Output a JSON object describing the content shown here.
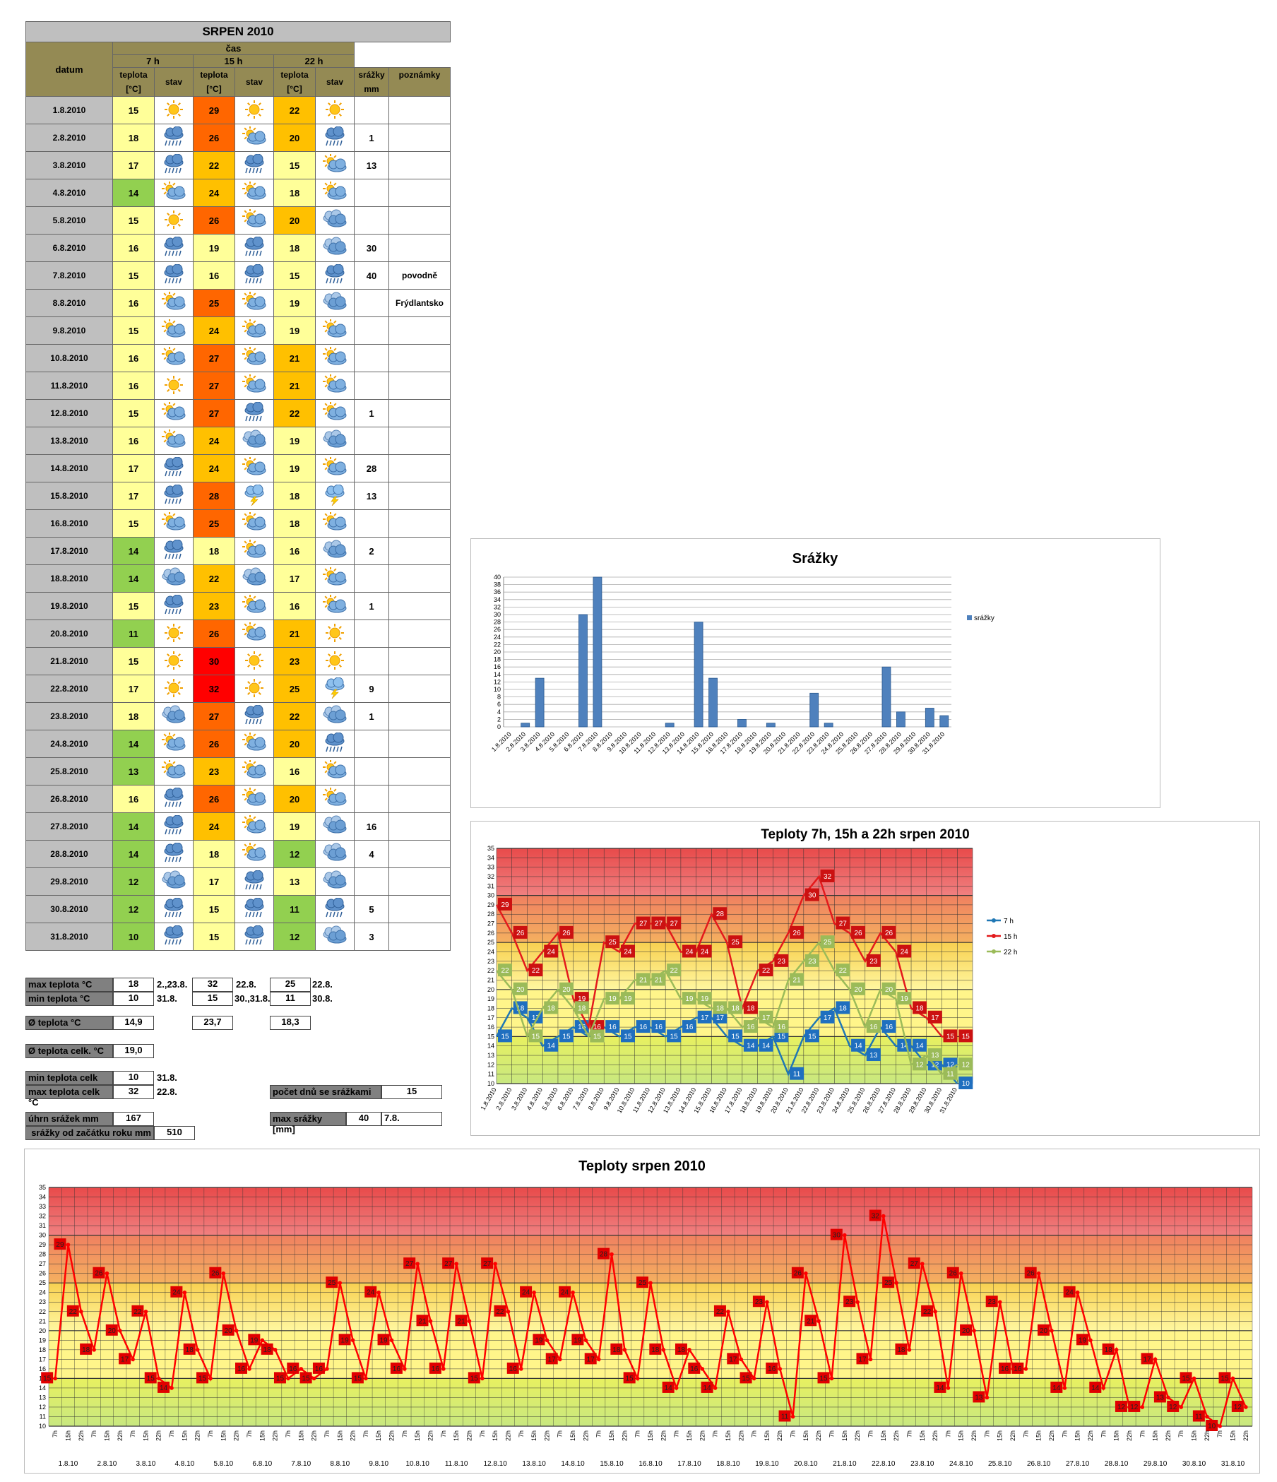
{
  "table": {
    "title": "SRPEN 2010",
    "headers": {
      "datum": "datum",
      "cas": "čas",
      "t7": "7 h",
      "t15": "15 h",
      "t22": "22 h",
      "teplota1": "teplota",
      "teplota2": "[°C]",
      "stav": "stav",
      "srazky1": "srážky",
      "srazky2": "mm",
      "poznamky": "poznámky"
    },
    "rows": [
      {
        "date": "1.8.2010",
        "t7": 15,
        "w7": "sun",
        "t15": 29,
        "w15": "sun",
        "t22": 22,
        "w22": "sun",
        "rain": "",
        "note": ""
      },
      {
        "date": "2.8.2010",
        "t7": 18,
        "w7": "rain",
        "t15": 26,
        "w15": "partly",
        "t22": 20,
        "w22": "rain",
        "rain": "1",
        "note": ""
      },
      {
        "date": "3.8.2010",
        "t7": 17,
        "w7": "rain",
        "t15": 22,
        "w15": "rain",
        "t22": 15,
        "w22": "partly",
        "rain": "13",
        "note": ""
      },
      {
        "date": "4.8.2010",
        "t7": 14,
        "w7": "partly",
        "t15": 24,
        "w15": "partly",
        "t22": 18,
        "w22": "partly",
        "rain": "",
        "note": ""
      },
      {
        "date": "5.8.2010",
        "t7": 15,
        "w7": "sun",
        "t15": 26,
        "w15": "partly",
        "t22": 20,
        "w22": "cloud",
        "rain": "",
        "note": ""
      },
      {
        "date": "6.8.2010",
        "t7": 16,
        "w7": "rain",
        "t15": 19,
        "w15": "rain",
        "t22": 18,
        "w22": "cloud",
        "rain": "30",
        "note": ""
      },
      {
        "date": "7.8.2010",
        "t7": 15,
        "w7": "rain",
        "t15": 16,
        "w15": "rain",
        "t22": 15,
        "w22": "rain",
        "rain": "40",
        "note": "povodně"
      },
      {
        "date": "8.8.2010",
        "t7": 16,
        "w7": "partly",
        "t15": 25,
        "w15": "partly",
        "t22": 19,
        "w22": "cloud",
        "rain": "",
        "note": "Frýdlantsko"
      },
      {
        "date": "9.8.2010",
        "t7": 15,
        "w7": "partly",
        "t15": 24,
        "w15": "partly",
        "t22": 19,
        "w22": "partly",
        "rain": "",
        "note": ""
      },
      {
        "date": "10.8.2010",
        "t7": 16,
        "w7": "partly",
        "t15": 27,
        "w15": "partly",
        "t22": 21,
        "w22": "partly",
        "rain": "",
        "note": ""
      },
      {
        "date": "11.8.2010",
        "t7": 16,
        "w7": "sun",
        "t15": 27,
        "w15": "partly",
        "t22": 21,
        "w22": "partly",
        "rain": "",
        "note": ""
      },
      {
        "date": "12.8.2010",
        "t7": 15,
        "w7": "partly",
        "t15": 27,
        "w15": "rain",
        "t22": 22,
        "w22": "partly",
        "rain": "1",
        "note": ""
      },
      {
        "date": "13.8.2010",
        "t7": 16,
        "w7": "partly",
        "t15": 24,
        "w15": "cloud",
        "t22": 19,
        "w22": "cloud",
        "rain": "",
        "note": ""
      },
      {
        "date": "14.8.2010",
        "t7": 17,
        "w7": "rain",
        "t15": 24,
        "w15": "partly",
        "t22": 19,
        "w22": "partly",
        "rain": "28",
        "note": ""
      },
      {
        "date": "15.8.2010",
        "t7": 17,
        "w7": "rain",
        "t15": 28,
        "w15": "storm",
        "t22": 18,
        "w22": "storm",
        "rain": "13",
        "note": ""
      },
      {
        "date": "16.8.2010",
        "t7": 15,
        "w7": "partly",
        "t15": 25,
        "w15": "partly",
        "t22": 18,
        "w22": "partly",
        "rain": "",
        "note": ""
      },
      {
        "date": "17.8.2010",
        "t7": 14,
        "w7": "rain",
        "t15": 18,
        "w15": "partly",
        "t22": 16,
        "w22": "cloud",
        "rain": "2",
        "note": ""
      },
      {
        "date": "18.8.2010",
        "t7": 14,
        "w7": "cloud",
        "t15": 22,
        "w15": "cloud",
        "t22": 17,
        "w22": "partly",
        "rain": "",
        "note": ""
      },
      {
        "date": "19.8.2010",
        "t7": 15,
        "w7": "rain",
        "t15": 23,
        "w15": "partly",
        "t22": 16,
        "w22": "partly",
        "rain": "1",
        "note": ""
      },
      {
        "date": "20.8.2010",
        "t7": 11,
        "w7": "sun",
        "t15": 26,
        "w15": "partly",
        "t22": 21,
        "w22": "sun",
        "rain": "",
        "note": ""
      },
      {
        "date": "21.8.2010",
        "t7": 15,
        "w7": "sun",
        "t15": 30,
        "w15": "sun",
        "t22": 23,
        "w22": "sun",
        "rain": "",
        "note": ""
      },
      {
        "date": "22.8.2010",
        "t7": 17,
        "w7": "sun",
        "t15": 32,
        "w15": "sun",
        "t22": 25,
        "w22": "storm",
        "rain": "9",
        "note": ""
      },
      {
        "date": "23.8.2010",
        "t7": 18,
        "w7": "cloud",
        "t15": 27,
        "w15": "rain",
        "t22": 22,
        "w22": "cloud",
        "rain": "1",
        "note": ""
      },
      {
        "date": "24.8.2010",
        "t7": 14,
        "w7": "partly",
        "t15": 26,
        "w15": "partly",
        "t22": 20,
        "w22": "rain",
        "rain": "",
        "note": ""
      },
      {
        "date": "25.8.2010",
        "t7": 13,
        "w7": "partly",
        "t15": 23,
        "w15": "partly",
        "t22": 16,
        "w22": "partly",
        "rain": "",
        "note": ""
      },
      {
        "date": "26.8.2010",
        "t7": 16,
        "w7": "rain",
        "t15": 26,
        "w15": "partly",
        "t22": 20,
        "w22": "partly",
        "rain": "",
        "note": ""
      },
      {
        "date": "27.8.2010",
        "t7": 14,
        "w7": "rain",
        "t15": 24,
        "w15": "partly",
        "t22": 19,
        "w22": "cloud",
        "rain": "16",
        "note": ""
      },
      {
        "date": "28.8.2010",
        "t7": 14,
        "w7": "rain",
        "t15": 18,
        "w15": "partly",
        "t22": 12,
        "w22": "cloud",
        "rain": "4",
        "note": ""
      },
      {
        "date": "29.8.2010",
        "t7": 12,
        "w7": "cloud",
        "t15": 17,
        "w15": "rain",
        "t22": 13,
        "w22": "cloud",
        "rain": "",
        "note": ""
      },
      {
        "date": "30.8.2010",
        "t7": 12,
        "w7": "rain",
        "t15": 15,
        "w15": "rain",
        "t22": 11,
        "w22": "rain",
        "rain": "5",
        "note": ""
      },
      {
        "date": "31.8.2010",
        "t7": 10,
        "w7": "rain",
        "t15": 15,
        "w15": "rain",
        "t22": 12,
        "w22": "cloud",
        "rain": "3",
        "note": ""
      }
    ],
    "colors": {
      "green": "#92d050",
      "lightyellow": "#ffff99",
      "yellow": "#ffff00",
      "orange": "#ffc000",
      "darkorange": "#ff6600",
      "red": "#ff0000",
      "white": "#ffffff"
    }
  },
  "stats": {
    "max_label": "max teplota °C",
    "max7": "18",
    "max7d": "2.,23.8.",
    "max15": "32",
    "max15d": "22.8.",
    "max22": "25",
    "max22d": "22.8.",
    "min_label": "min teplota °C",
    "min7": "10",
    "min7d": "31.8.",
    "min15": "15",
    "min15d": "30.,31.8.",
    "min22": "11",
    "min22d": "30.8.",
    "avg_label": "Ø teplota °C",
    "avg7": "14,9",
    "avg15": "23,7",
    "avg22": "18,3",
    "avgall_label": "Ø teplota celk. °C",
    "avgall": "19,0",
    "minall_label": "min teplota celk °C",
    "minall": "10",
    "minalld": "31.8.",
    "maxall_label": "max teplota celk °C",
    "maxall": "32",
    "maxalld": "22.8.",
    "raindays_label": "počet dnů se srážkami",
    "raindays": "15",
    "rainsum_label": "úhrn srážek  mm",
    "rainsum": "167",
    "rainmax_label": "max srážky [mm]",
    "rainmax": "40",
    "rainmaxd": "7.8.",
    "rainyear_label": "srážky od začátku roku mm",
    "rainyear": "510"
  },
  "chart_data": [
    {
      "type": "bar",
      "title": "Srážky",
      "categories": [
        "1.8.2010",
        "2.8.2010",
        "3.8.2010",
        "4.8.2010",
        "5.8.2010",
        "6.8.2010",
        "7.8.2010",
        "8.8.2010",
        "9.8.2010",
        "10.8.2010",
        "11.8.2010",
        "12.8.2010",
        "13.8.2010",
        "14.8.2010",
        "15.8.2010",
        "16.8.2010",
        "17.8.2010",
        "18.8.2010",
        "19.8.2010",
        "20.8.2010",
        "21.8.2010",
        "22.8.2010",
        "23.8.2010",
        "24.8.2010",
        "25.8.2010",
        "26.8.2010",
        "27.8.2010",
        "28.8.2010",
        "29.8.2010",
        "30.8.2010",
        "31.8.2010"
      ],
      "series": [
        {
          "name": "srážky",
          "values": [
            0,
            1,
            13,
            0,
            0,
            30,
            40,
            0,
            0,
            0,
            0,
            1,
            0,
            28,
            13,
            0,
            2,
            0,
            1,
            0,
            0,
            9,
            1,
            0,
            0,
            0,
            16,
            4,
            0,
            5,
            3
          ],
          "color": "#4f81bd"
        }
      ],
      "ylim": [
        0,
        40
      ],
      "ystep": 2,
      "legend": "right",
      "grid": true
    },
    {
      "type": "line",
      "title": "Teploty 7h, 15h a 22h srpen 2010",
      "categories": [
        "1.8.2010",
        "2.8.2010",
        "3.8.2010",
        "4.8.2010",
        "5.8.2010",
        "6.8.2010",
        "7.8.2010",
        "8.8.2010",
        "9.8.2010",
        "10.8.2010",
        "11.8.2010",
        "12.8.2010",
        "13.8.2010",
        "14.8.2010",
        "15.8.2010",
        "16.8.2010",
        "17.8.2010",
        "18.8.2010",
        "19.8.2010",
        "20.8.2010",
        "21.8.2010",
        "22.8.2010",
        "23.8.2010",
        "24.8.2010",
        "25.8.2010",
        "26.8.2010",
        "27.8.2010",
        "28.8.2010",
        "29.8.2010",
        "30.8.2010",
        "31.8.2010"
      ],
      "series": [
        {
          "name": "7 h",
          "color": "#1f77b4",
          "values": [
            15,
            18,
            17,
            14,
            15,
            16,
            15,
            16,
            15,
            16,
            16,
            15,
            16,
            17,
            17,
            15,
            14,
            14,
            15,
            11,
            15,
            17,
            18,
            14,
            13,
            16,
            14,
            14,
            12,
            12,
            10
          ]
        },
        {
          "name": "15 h",
          "color": "#e31a1c",
          "values": [
            29,
            26,
            22,
            24,
            26,
            19,
            16,
            25,
            24,
            27,
            27,
            27,
            24,
            24,
            28,
            25,
            18,
            22,
            23,
            26,
            30,
            32,
            27,
            26,
            23,
            26,
            24,
            18,
            17,
            15,
            15
          ]
        },
        {
          "name": "22 h",
          "color": "#9bbb59",
          "values": [
            22,
            20,
            15,
            18,
            20,
            18,
            15,
            19,
            19,
            21,
            21,
            22,
            19,
            19,
            18,
            18,
            16,
            17,
            16,
            21,
            23,
            25,
            22,
            20,
            16,
            20,
            19,
            12,
            13,
            11,
            12
          ]
        }
      ],
      "ylim": [
        10,
        35
      ],
      "ystep": 1,
      "legend": "right",
      "grid": true
    },
    {
      "type": "line",
      "title": "Teploty srpen 2010",
      "day_labels": [
        "1.8.10",
        "2.8.10",
        "3.8.10",
        "4.8.10",
        "5.8.10",
        "6.8.10",
        "7.8.10",
        "8.8.10",
        "9.8.10",
        "10.8.10",
        "11.8.10",
        "12.8.10",
        "13.8.10",
        "14.8.10",
        "15.8.10",
        "16.8.10",
        "17.8.10",
        "18.8.10",
        "19.8.10",
        "20.8.10",
        "21.8.10",
        "22.8.10",
        "23.8.10",
        "24.8.10",
        "25.8.10",
        "26.8.10",
        "27.8.10",
        "28.8.10",
        "29.8.10",
        "30.8.10",
        "31.8.10"
      ],
      "hour_labels": [
        "7h",
        "15h",
        "22h"
      ],
      "series": [
        {
          "name": "",
          "color": "#ff0000",
          "values": [
            15,
            29,
            22,
            18,
            26,
            20,
            17,
            22,
            15,
            14,
            24,
            18,
            15,
            26,
            20,
            16,
            19,
            18,
            15,
            16,
            15,
            16,
            25,
            19,
            15,
            24,
            19,
            16,
            27,
            21,
            16,
            27,
            21,
            15,
            27,
            22,
            16,
            24,
            19,
            17,
            24,
            19,
            17,
            28,
            18,
            15,
            25,
            18,
            14,
            18,
            16,
            14,
            22,
            17,
            15,
            23,
            16,
            11,
            26,
            21,
            15,
            30,
            23,
            17,
            32,
            25,
            18,
            27,
            22,
            14,
            26,
            20,
            13,
            23,
            16,
            16,
            26,
            20,
            14,
            24,
            19,
            14,
            18,
            12,
            12,
            17,
            13,
            12,
            15,
            11,
            10,
            15,
            12
          ]
        }
      ],
      "ylim": [
        10,
        35
      ],
      "ystep": 1,
      "grid": true
    }
  ]
}
